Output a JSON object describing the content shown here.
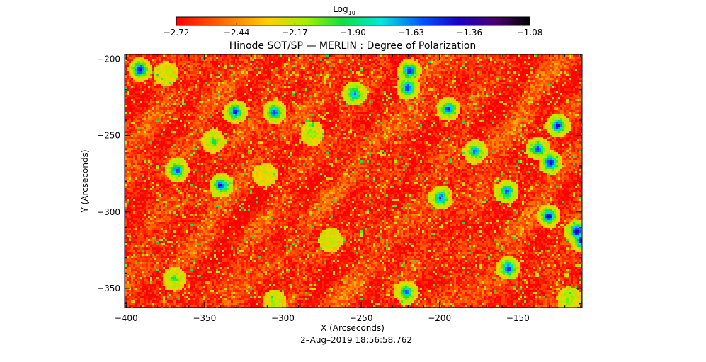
{
  "chart_data": {
    "type": "heatmap",
    "title": "Hinode SOT/SP — MERLIN : Degree of Polarization",
    "xlabel": "X (Arcseconds)",
    "ylabel": "Y (Arcseconds)",
    "xlim": [
      -401,
      -109
    ],
    "ylim": [
      -362.5,
      -197
    ],
    "xticks": [
      -400,
      -350,
      -300,
      -250,
      -200,
      -150
    ],
    "xtick_labels": [
      "−400",
      "−350",
      "−300",
      "−250",
      "−200",
      "−150"
    ],
    "yticks": [
      -350,
      -300,
      -250,
      -200
    ],
    "ytick_labels": [
      "−350",
      "−300",
      "−250",
      "−200"
    ],
    "timestamp": "2–Aug–2019 18:56:58.762",
    "colorbar": {
      "label_main": "Log",
      "label_sub": "10",
      "range": [
        -2.72,
        -1.08
      ],
      "colormap": "rainbow-black",
      "tick_values": [
        -2.72,
        -2.44,
        -2.17,
        -1.9,
        -1.63,
        -1.36,
        -1.08
      ],
      "tick_labels": [
        "−2.72",
        "−2.44",
        "−2.17",
        "−1.90",
        "−1.63",
        "−1.36",
        "−1.08"
      ]
    },
    "field_description_values": {
      "background_level": -2.62,
      "network_level": -2.25,
      "strong_patch_level": -1.4
    },
    "strong_patches": [
      {
        "x": -392,
        "y": -206,
        "value": -1.38
      },
      {
        "x": -375,
        "y": -209,
        "value": -2.2
      },
      {
        "x": -331,
        "y": -234,
        "value": -1.45
      },
      {
        "x": -306,
        "y": -234,
        "value": -1.5
      },
      {
        "x": -282,
        "y": -248,
        "value": -2.1
      },
      {
        "x": -220,
        "y": -207,
        "value": -1.4
      },
      {
        "x": -221,
        "y": -218,
        "value": -1.45
      },
      {
        "x": -255,
        "y": -222,
        "value": -1.6
      },
      {
        "x": -195,
        "y": -232,
        "value": -1.5
      },
      {
        "x": -368,
        "y": -272,
        "value": -1.5
      },
      {
        "x": -340,
        "y": -282,
        "value": -1.45
      },
      {
        "x": -345,
        "y": -253,
        "value": -2.0
      },
      {
        "x": -200,
        "y": -290,
        "value": -1.55
      },
      {
        "x": -178,
        "y": -260,
        "value": -1.6
      },
      {
        "x": -158,
        "y": -286,
        "value": -1.5
      },
      {
        "x": -138,
        "y": -258,
        "value": -1.5
      },
      {
        "x": -130,
        "y": -267,
        "value": -1.4
      },
      {
        "x": -125,
        "y": -243,
        "value": -1.45
      },
      {
        "x": -131,
        "y": -302,
        "value": -1.35
      },
      {
        "x": -113,
        "y": -312,
        "value": -1.3
      },
      {
        "x": -110,
        "y": -318,
        "value": -1.35
      },
      {
        "x": -157,
        "y": -336,
        "value": -1.45
      },
      {
        "x": -222,
        "y": -352,
        "value": -1.6
      },
      {
        "x": -370,
        "y": -343,
        "value": -2.0
      },
      {
        "x": -270,
        "y": -318,
        "value": -2.2
      },
      {
        "x": -306,
        "y": -358,
        "value": -2.15
      },
      {
        "x": -118,
        "y": -356,
        "value": -2.1
      },
      {
        "x": -312,
        "y": -275,
        "value": -2.2
      }
    ]
  }
}
